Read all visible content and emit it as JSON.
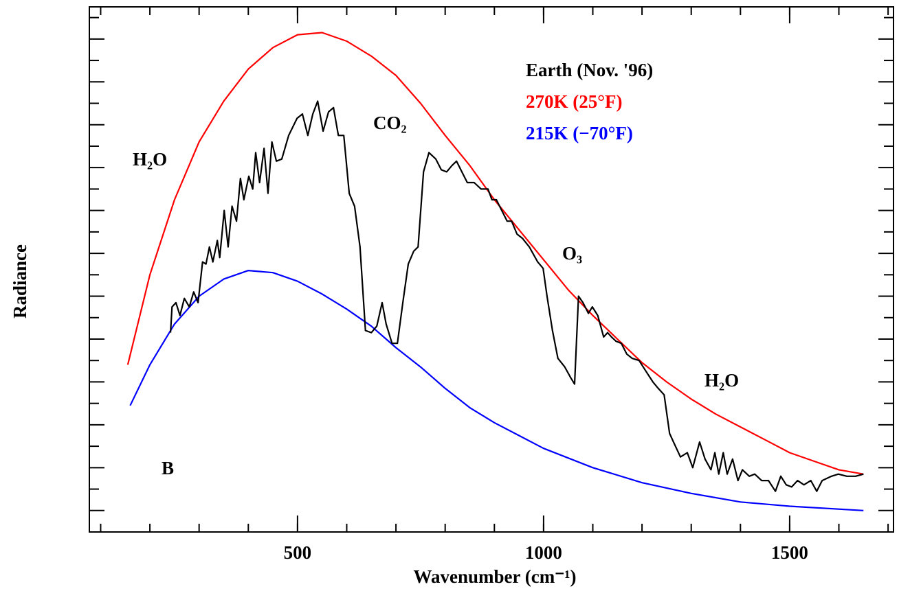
{
  "chart_data": {
    "type": "line",
    "xlabel": "Wavenumber (cm⁻¹)",
    "ylabel": "Radiance",
    "xlim": [
      77,
      1711
    ],
    "ylim": [
      0,
      24.5
    ],
    "xticks": [
      500,
      1000,
      1500
    ],
    "xminorticks": [
      100,
      200,
      300,
      400,
      500,
      600,
      700,
      800,
      900,
      1000,
      1100,
      1200,
      1300,
      1400,
      1500,
      1600,
      1700
    ],
    "yticks": [
      1,
      2,
      3,
      4,
      5,
      6,
      7,
      8,
      9,
      10,
      11,
      12,
      13,
      14,
      15,
      16,
      17,
      18,
      19,
      20,
      21,
      22,
      23,
      24
    ],
    "annotations": [
      "H₂O",
      "CO₂",
      "O₃",
      "H₂O",
      "B"
    ],
    "series": [
      {
        "name": "Earth (Nov. '96)",
        "color": "#000000",
        "x": [
          242,
          245,
          253,
          261,
          270,
          280,
          289,
          298,
          307,
          314,
          321,
          328,
          337,
          342,
          351,
          359,
          367,
          376,
          384,
          391,
          401,
          409,
          415,
          423,
          432,
          440,
          448,
          457,
          468,
          482,
          499,
          510,
          521,
          531,
          541,
          552,
          563,
          573,
          583,
          594,
          605,
          616,
          627,
          638,
          650,
          661,
          672,
          680,
          692,
          703,
          714,
          725,
          736,
          745,
          756,
          767,
          781,
          792,
          803,
          814,
          823,
          834,
          845,
          859,
          873,
          887,
          895,
          904,
          915,
          926,
          935,
          946,
          957,
          971,
          988,
          999,
          1007,
          1018,
          1029,
          1043,
          1055,
          1063,
          1071,
          1080,
          1091,
          1099,
          1110,
          1122,
          1130,
          1138,
          1147,
          1158,
          1169,
          1180,
          1194,
          1208,
          1222,
          1233,
          1245,
          1256,
          1264,
          1278,
          1292,
          1303,
          1317,
          1328,
          1340,
          1348,
          1356,
          1365,
          1373,
          1384,
          1395,
          1404,
          1418,
          1429,
          1443,
          1457,
          1471,
          1482,
          1493,
          1504,
          1516,
          1529,
          1543,
          1555,
          1566,
          1585,
          1599,
          1616,
          1634,
          1650
        ],
        "values": [
          9.3,
          10.5,
          10.7,
          10.1,
          10.9,
          10.5,
          11.2,
          10.7,
          12.6,
          12.5,
          13.3,
          12.6,
          13.6,
          12.8,
          15.0,
          13.3,
          15.2,
          14.5,
          16.5,
          15.5,
          16.6,
          16.0,
          17.7,
          16.3,
          17.9,
          15.8,
          18.2,
          17.3,
          17.4,
          18.5,
          19.3,
          19.5,
          18.5,
          19.5,
          20.1,
          18.7,
          19.6,
          19.8,
          18.5,
          18.5,
          15.8,
          15.2,
          13.3,
          9.4,
          9.3,
          9.6,
          10.7,
          9.7,
          8.8,
          8.8,
          10.7,
          12.5,
          13.1,
          13.3,
          16.8,
          17.7,
          17.4,
          16.9,
          16.8,
          17.1,
          17.3,
          16.8,
          16.3,
          16.3,
          16.0,
          16.0,
          15.5,
          15.5,
          15.0,
          14.5,
          14.5,
          13.9,
          13.7,
          13.3,
          12.6,
          12.3,
          11.0,
          9.4,
          8.1,
          7.7,
          7.2,
          6.9,
          11.0,
          10.7,
          10.2,
          10.5,
          10.1,
          9.1,
          9.3,
          9.1,
          8.9,
          8.8,
          8.3,
          8.1,
          8.0,
          7.5,
          7.0,
          6.7,
          6.4,
          4.6,
          4.2,
          3.5,
          3.7,
          3.0,
          4.2,
          3.4,
          2.9,
          3.7,
          2.7,
          3.7,
          2.7,
          3.4,
          2.4,
          2.9,
          2.6,
          2.7,
          2.4,
          2.4,
          1.9,
          2.6,
          2.2,
          2.1,
          2.4,
          2.2,
          2.4,
          1.9,
          2.4,
          2.6,
          2.7,
          2.6,
          2.6,
          2.7
        ]
      },
      {
        "name": "270K (25°F)",
        "color": "#ff0000",
        "x": [
          155,
          200,
          250,
          300,
          350,
          400,
          450,
          500,
          550,
          600,
          650,
          700,
          750,
          800,
          850,
          900,
          950,
          1000,
          1050,
          1100,
          1150,
          1200,
          1250,
          1300,
          1350,
          1400,
          1450,
          1500,
          1550,
          1600,
          1650
        ],
        "values": [
          7.8,
          12.0,
          15.5,
          18.2,
          20.1,
          21.6,
          22.6,
          23.2,
          23.3,
          22.9,
          22.2,
          21.3,
          20.0,
          18.5,
          17.1,
          15.5,
          14.1,
          12.7,
          11.3,
          10.1,
          9.0,
          7.9,
          7.0,
          6.2,
          5.5,
          4.9,
          4.3,
          3.7,
          3.3,
          2.9,
          2.7
        ]
      },
      {
        "name": "215K (−70°F)",
        "color": "#0000ff",
        "x": [
          160,
          200,
          250,
          300,
          350,
          400,
          450,
          500,
          550,
          600,
          650,
          700,
          750,
          800,
          850,
          900,
          950,
          1000,
          1100,
          1200,
          1300,
          1400,
          1500,
          1650
        ],
        "values": [
          5.9,
          7.8,
          9.7,
          11.0,
          11.8,
          12.2,
          12.1,
          11.7,
          11.1,
          10.4,
          9.6,
          8.6,
          7.7,
          6.7,
          5.8,
          5.1,
          4.5,
          3.9,
          3.0,
          2.3,
          1.8,
          1.4,
          1.2,
          1.0
        ]
      }
    ]
  }
}
